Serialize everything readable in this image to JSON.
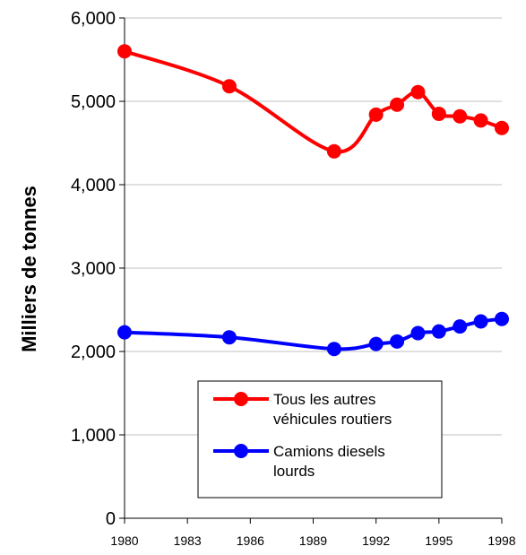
{
  "chart_data": {
    "type": "line",
    "title": "",
    "xlabel": "",
    "ylabel": "Milliers de tonnes",
    "xlim": [
      1980,
      1998
    ],
    "ylim": [
      0,
      6000
    ],
    "x_ticks": [
      "1980",
      "1983",
      "1986",
      "1989",
      "1992",
      "1995",
      "1998"
    ],
    "y_ticks": [
      "0",
      "1,000",
      "2,000",
      "3,000",
      "4,000",
      "5,000",
      "6,000"
    ],
    "grid": true,
    "legend_position": "bottom-center",
    "series": [
      {
        "name": "Tous les autres véhicules routiers",
        "color": "#ff0000",
        "x": [
          1980,
          1985,
          1990,
          1992,
          1993,
          1994,
          1995,
          1996,
          1997,
          1998
        ],
        "y": [
          5600,
          5180,
          4400,
          4840,
          4960,
          5110,
          4850,
          4820,
          4770,
          4680
        ]
      },
      {
        "name": "Camions diesels lourds",
        "color": "#0000ff",
        "x": [
          1980,
          1985,
          1990,
          1992,
          1993,
          1994,
          1995,
          1996,
          1997,
          1998
        ],
        "y": [
          2230,
          2170,
          2030,
          2090,
          2120,
          2220,
          2240,
          2300,
          2360,
          2390
        ]
      }
    ],
    "legend": {
      "entries": [
        {
          "lines": [
            "Tous les autres",
            "véhicules routiers"
          ]
        },
        {
          "lines": [
            "Camions diesels",
            "lourds"
          ]
        }
      ]
    }
  }
}
